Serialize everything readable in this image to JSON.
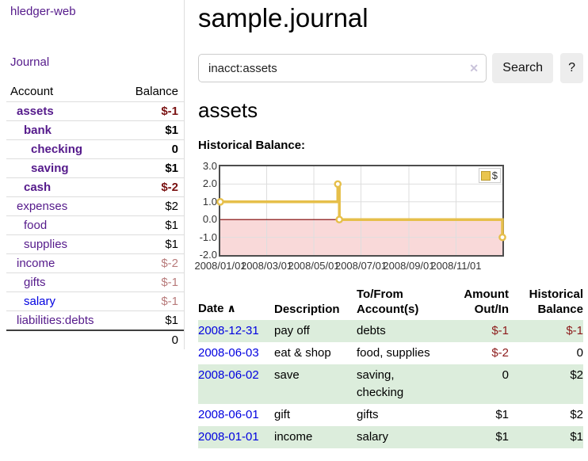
{
  "app": {
    "brand": "hledger-web"
  },
  "sidebar": {
    "journal_link": "Journal",
    "accounts": {
      "col_account": "Account",
      "col_balance": "Balance",
      "rows": [
        {
          "name": "assets",
          "balance": "$-1"
        },
        {
          "name": "bank",
          "balance": "$1"
        },
        {
          "name": "checking",
          "balance": "0"
        },
        {
          "name": "saving",
          "balance": "$1"
        },
        {
          "name": "cash",
          "balance": "$-2"
        },
        {
          "name": "expenses",
          "balance": "$2"
        },
        {
          "name": "food",
          "balance": "$1"
        },
        {
          "name": "supplies",
          "balance": "$1"
        },
        {
          "name": "income",
          "balance": "$-2"
        },
        {
          "name": "gifts",
          "balance": "$-1"
        },
        {
          "name": "salary",
          "balance": "$-1"
        },
        {
          "name": "liabilities:debts",
          "balance": "$1"
        }
      ],
      "total": "0"
    }
  },
  "main": {
    "page_title": "sample.journal",
    "search": {
      "value": "inacct:assets",
      "clear": "✕",
      "search_label": "Search",
      "help_label": "?"
    },
    "account_title": "assets",
    "section_label": "Historical Balance:"
  },
  "chart_data": {
    "type": "line",
    "step": true,
    "title": "Historical Balance",
    "series": [
      {
        "name": "$",
        "color": "#e6bf4a",
        "points": [
          [
            "2008-01-01",
            1
          ],
          [
            "2008-06-01",
            2
          ],
          [
            "2008-06-03",
            0
          ],
          [
            "2008-12-31",
            -1
          ]
        ]
      }
    ],
    "x_range": [
      "2008-01-01",
      "2008-12-31"
    ],
    "ylim": [
      -2,
      3
    ],
    "yticks": [
      "3.0",
      "2.0",
      "1.0",
      "0.0",
      "-1.0",
      "-2.0"
    ],
    "xticks": [
      "2008/01/01",
      "2008/03/01",
      "2008/05/01",
      "2008/07/01",
      "2008/09/01",
      "2008/11/01"
    ],
    "grid": true,
    "negative_fill": "#f9d9d9",
    "zero_line_color": "#7d0101",
    "legend": {
      "label": "$",
      "position": "top-right"
    }
  },
  "register": {
    "headers": {
      "date": "Date",
      "sort_icon": "∧",
      "description": "Description",
      "accounts": "To/From Account(s)",
      "amount": "Amount Out/In",
      "balance": "Historical Balance"
    },
    "rows": [
      {
        "date": "2008-12-31",
        "description": "pay off",
        "accounts": "debts",
        "amount": "$-1",
        "balance": "$-1"
      },
      {
        "date": "2008-06-03",
        "description": "eat & shop",
        "accounts": "food, supplies",
        "amount": "$-2",
        "balance": "0"
      },
      {
        "date": "2008-06-02",
        "description": "save",
        "accounts": "saving, checking",
        "amount": "0",
        "balance": "$2"
      },
      {
        "date": "2008-06-01",
        "description": "gift",
        "accounts": "gifts",
        "amount": "$1",
        "balance": "$2"
      },
      {
        "date": "2008-01-01",
        "description": "income",
        "accounts": "salary",
        "amount": "$1",
        "balance": "$1"
      }
    ]
  }
}
